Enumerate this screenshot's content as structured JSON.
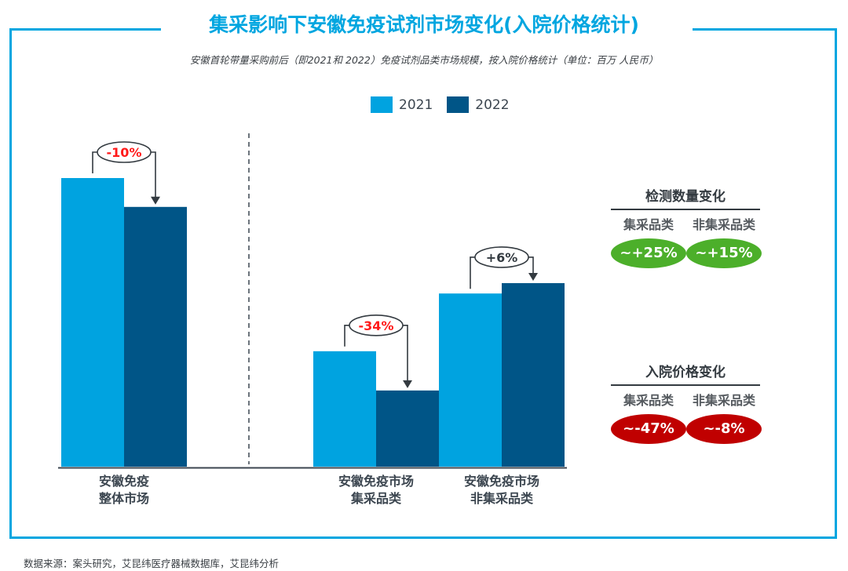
{
  "title": "集采影响下安徽免疫试剂市场变化(入院价格统计)",
  "subtitle": "安徽首轮带量采购前后（即2021和 2022）免疫试剂品类市场规模，按入院价格统计（单位：百万 人民币）",
  "colors": {
    "frame": "#00a6e0",
    "series_2021": "#00a3e0",
    "series_2022": "#005587",
    "negative_text": "#ff1a1a",
    "positive_text": "#333a40",
    "pill_green": "#4caf2a",
    "pill_red": "#c00000"
  },
  "chart_data": {
    "type": "bar",
    "title": "集采影响下安徽免疫试剂市场变化(入院价格统计)",
    "xlabel": "",
    "ylabel": "",
    "unit_note": "Values not printed; relative heights with 安徽免疫整体市场 2021 = 100",
    "categories": [
      "安徽免疫\n整体市场",
      "安徽免疫市场\n集采品类",
      "安徽免疫市场\n非集采品类"
    ],
    "category_lines": [
      [
        "安徽免疫",
        "整体市场"
      ],
      [
        "安徽免疫市场",
        "集采品类"
      ],
      [
        "安徽免疫市场",
        "非集采品类"
      ]
    ],
    "series": [
      {
        "name": "2021",
        "values": [
          100,
          40,
          60
        ]
      },
      {
        "name": "2022",
        "values": [
          90,
          26.4,
          63.6
        ]
      }
    ],
    "ylim": [
      0,
      100
    ],
    "grid": false,
    "legend": "top-center",
    "annotations": [
      {
        "category": 0,
        "text": "-10%",
        "tone": "negative"
      },
      {
        "category": 1,
        "text": "-34%",
        "tone": "negative"
      },
      {
        "category": 2,
        "text": "+6%",
        "tone": "positive"
      }
    ],
    "divider_after_category": 0
  },
  "legend": [
    {
      "label": "2021"
    },
    {
      "label": "2022"
    }
  ],
  "panels": [
    {
      "heading": "检测数量变化",
      "items": [
        {
          "label": "集采品类",
          "value": "~+25%",
          "tone": "green"
        },
        {
          "label": "非集采品类",
          "value": "~+15%",
          "tone": "green"
        }
      ]
    },
    {
      "heading": "入院价格变化",
      "items": [
        {
          "label": "集采品类",
          "value": "~-47%",
          "tone": "red"
        },
        {
          "label": "非集采品类",
          "value": "~-8%",
          "tone": "red"
        }
      ]
    }
  ],
  "source": "数据来源：案头研究，艾昆纬医疗器械数据库，艾昆纬分析"
}
